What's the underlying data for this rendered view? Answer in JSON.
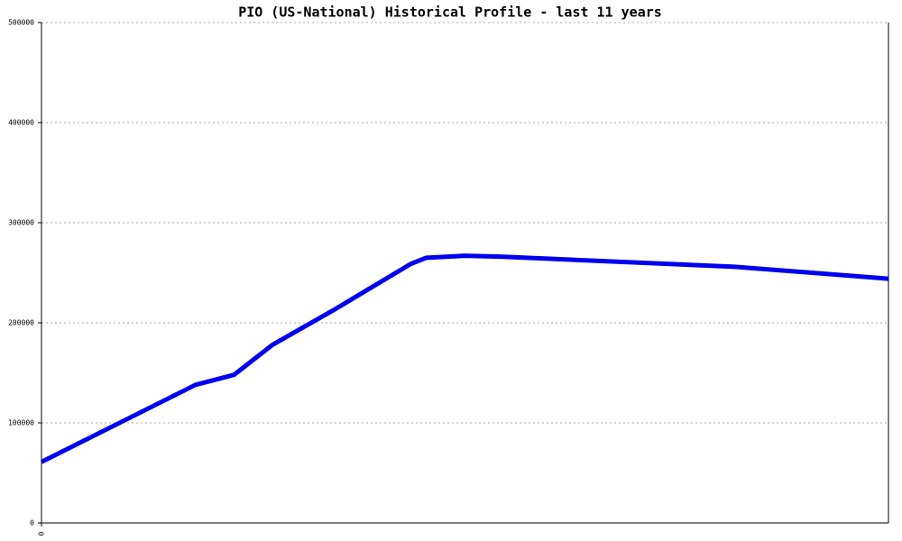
{
  "chart_data": {
    "type": "line",
    "title": "PIO (US-National) Historical Profile - last 11 years",
    "x": [
      0,
      2,
      2.5,
      3,
      3.8,
      4.8,
      5,
      5.5,
      6,
      9,
      11
    ],
    "series": [
      {
        "color": "#0000ee",
        "values": [
          61000,
          138000,
          148000,
          178000,
          213000,
          259000,
          265000,
          267000,
          266000,
          256000,
          244000
        ]
      }
    ],
    "xlim": [
      0,
      11
    ],
    "xticks": [
      0
    ],
    "ylim": [
      0,
      500000
    ],
    "yticks": [
      0,
      100000,
      200000,
      300000,
      400000,
      500000
    ],
    "grid": true
  }
}
